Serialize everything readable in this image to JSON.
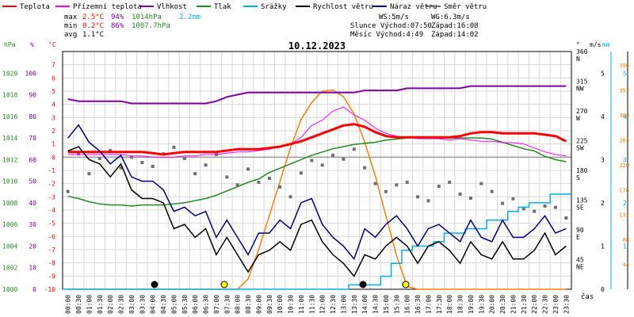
{
  "legend": [
    {
      "label": "Teplota",
      "color": "#ff0000"
    },
    {
      "label": "Přízemní teplota",
      "color": "#ff00ff"
    },
    {
      "label": "Vlhkost",
      "color": "#8000a0"
    },
    {
      "label": "Tlak",
      "color": "#228b22"
    },
    {
      "label": "Srážky",
      "color": "#00b0e8"
    },
    {
      "label": "Rychlost větru",
      "color": "#000000"
    },
    {
      "label": "Náraz větru",
      "color": "#000080"
    },
    {
      "label": "Směr větru",
      "color": "#707070"
    }
  ],
  "stats": {
    "max": {
      "label": "max",
      "temp": "2.5°C",
      "hum": "94%",
      "press": "1014hPa",
      "rain": "2.2mm"
    },
    "min": {
      "label": "min",
      "temp": "0.2°C",
      "hum": "86%",
      "press": "1007.7hPa"
    },
    "avg": {
      "label": "avg",
      "temp": "1.1°C"
    }
  },
  "info": {
    "ws": "WS:5m/s",
    "wg": "WG:6.3m/s",
    "sun": "Slunce Východ:07:50",
    "sun_set": "Západ:16:08",
    "moon": "Měsíc  Východ:4:49",
    "moon_set": "Západ:14:02"
  },
  "date": "10.12.2023",
  "xaxis_label": "čas",
  "colors": {
    "temp": "#ff0000",
    "ground": "#ff00ff",
    "hum": "#8000a0",
    "press": "#228b22",
    "rain": "#00b0e8",
    "wind": "#000000",
    "gust": "#000080",
    "dir": "#707070",
    "sun": "#ff8000",
    "grid": "#d8d8d8"
  },
  "chart_data": {
    "type": "line",
    "title": "10.12.2023",
    "x": [
      "00:00",
      "00:30",
      "01:00",
      "01:30",
      "02:00",
      "02:30",
      "03:00",
      "03:30",
      "04:00",
      "04:30",
      "05:00",
      "05:30",
      "06:00",
      "06:30",
      "07:00",
      "07:30",
      "08:00",
      "08:30",
      "09:00",
      "09:30",
      "10:00",
      "10:30",
      "11:00",
      "11:30",
      "12:00",
      "12:30",
      "13:00",
      "13:30",
      "14:00",
      "14:30",
      "15:00",
      "15:30",
      "16:00",
      "16:30",
      "17:00",
      "17:30",
      "18:00",
      "18:30",
      "19:00",
      "19:30",
      "20:00",
      "20:30",
      "21:00",
      "21:30",
      "22:00",
      "22:30",
      "23:00",
      "23:30"
    ],
    "axes": {
      "hpa": {
        "label": "hPa",
        "ticks": [
          1000,
          1002,
          1004,
          1006,
          1008,
          1010,
          1012,
          1014,
          1016,
          1018,
          1020
        ],
        "range": [
          1000,
          1022
        ]
      },
      "pct": {
        "label": "%",
        "ticks": [
          0,
          10,
          20,
          30,
          40,
          50,
          60,
          70,
          80,
          90,
          100
        ],
        "range": [
          0,
          110
        ]
      },
      "celsius": {
        "label": "°C",
        "ticks": [
          -10,
          -9,
          -8,
          -7,
          -6,
          -5,
          -4,
          -3,
          -2,
          -1,
          0,
          1,
          2,
          3,
          4,
          5,
          6,
          7
        ],
        "range": [
          -10,
          8
        ]
      },
      "direction": {
        "label": "°",
        "ticks": [
          "360 N",
          "315 NW",
          "270 W",
          "225 SW",
          "180 S",
          "135 SE",
          "90 E",
          "45 NE"
        ],
        "range": [
          0,
          360
        ]
      },
      "ms": {
        "label": "m/s",
        "ticks": [
          0,
          1,
          2,
          3,
          4,
          5
        ],
        "range": [
          0,
          5.5
        ]
      },
      "mm": {
        "label": "mm",
        "ticks": [
          1,
          2,
          3,
          4,
          5
        ],
        "range": [
          0,
          5.5
        ]
      },
      "radiation": {
        "ticks": [
          0,
          44,
          88,
          132,
          176,
          220,
          264,
          308,
          352,
          396
        ],
        "range": [
          0,
          420
        ]
      }
    },
    "series": [
      {
        "name": "Teplota",
        "axis": "celsius",
        "values": [
          0.4,
          0.4,
          0.4,
          0.4,
          0.4,
          0.4,
          0.4,
          0.4,
          0.3,
          0.2,
          0.3,
          0.4,
          0.4,
          0.4,
          0.4,
          0.5,
          0.6,
          0.6,
          0.6,
          0.7,
          0.8,
          1.0,
          1.2,
          1.5,
          1.8,
          2.1,
          2.4,
          2.5,
          2.3,
          1.9,
          1.6,
          1.5,
          1.5,
          1.5,
          1.5,
          1.5,
          1.5,
          1.6,
          1.8,
          1.9,
          1.9,
          1.8,
          1.8,
          1.8,
          1.8,
          1.7,
          1.6,
          1.2
        ]
      },
      {
        "name": "Přízemní teplota",
        "axis": "celsius",
        "values": [
          0.2,
          0.2,
          0.2,
          0.2,
          0.2,
          0.2,
          0.1,
          0.1,
          0.0,
          0.0,
          0.0,
          0.1,
          0.1,
          0.2,
          0.2,
          0.3,
          0.4,
          0.4,
          0.5,
          0.6,
          0.8,
          1.0,
          1.5,
          2.4,
          2.8,
          3.5,
          3.8,
          3.2,
          2.8,
          2.2,
          1.8,
          1.6,
          1.5,
          1.4,
          1.4,
          1.4,
          1.3,
          1.4,
          1.3,
          1.2,
          1.2,
          1.1,
          1.1,
          1.0,
          0.7,
          0.4,
          0.2,
          0.1
        ]
      },
      {
        "name": "Vlhkost",
        "axis": "pct",
        "values": [
          88,
          87,
          87,
          87,
          87,
          87,
          86,
          86,
          86,
          86,
          86,
          86,
          86,
          86,
          87,
          89,
          90,
          91,
          91,
          91,
          91,
          91,
          91,
          91,
          91,
          91,
          91,
          91,
          92,
          92,
          92,
          92,
          93,
          93,
          93,
          93,
          93,
          93,
          94,
          94,
          94,
          94,
          94,
          94,
          94,
          94,
          94,
          94
        ]
      },
      {
        "name": "Tlak",
        "axis": "hpa",
        "values": [
          1008.6,
          1008.4,
          1008.1,
          1007.9,
          1007.8,
          1007.8,
          1007.7,
          1007.8,
          1007.8,
          1007.8,
          1007.9,
          1008.0,
          1008.2,
          1008.4,
          1008.7,
          1009.1,
          1009.5,
          1009.9,
          1010.2,
          1010.8,
          1011.2,
          1011.6,
          1012.0,
          1012.4,
          1012.7,
          1013.0,
          1013.2,
          1013.4,
          1013.5,
          1013.6,
          1013.8,
          1013.9,
          1014.0,
          1014.0,
          1014.0,
          1014.0,
          1014.0,
          1014.0,
          1014.0,
          1014.0,
          1013.9,
          1013.6,
          1013.3,
          1013.0,
          1012.8,
          1012.3,
          1012.0,
          1011.8
        ]
      },
      {
        "name": "Srážky",
        "axis": "mm",
        "values": [
          0,
          0,
          0,
          0,
          0,
          0,
          0,
          0,
          0,
          0,
          0,
          0,
          0,
          0,
          0,
          0,
          0,
          0,
          0,
          0,
          0,
          0,
          0,
          0,
          0,
          0,
          0,
          0.1,
          0.1,
          0.1,
          0.3,
          0.6,
          0.9,
          1.0,
          1.0,
          1.1,
          1.3,
          1.3,
          1.4,
          1.4,
          1.6,
          1.6,
          1.8,
          1.9,
          2.0,
          2.0,
          2.2,
          2.2
        ]
      },
      {
        "name": "Rychlost větru",
        "axis": "ms",
        "values": [
          3.2,
          3.3,
          3.0,
          2.9,
          2.6,
          2.9,
          2.3,
          2.1,
          2.1,
          2.0,
          1.4,
          1.5,
          1.2,
          1.4,
          0.8,
          1.2,
          0.8,
          0.4,
          0.8,
          0.9,
          1.1,
          0.9,
          1.5,
          1.6,
          1.1,
          0.8,
          0.6,
          0.3,
          0.8,
          0.7,
          1.0,
          1.2,
          1.0,
          0.6,
          1.0,
          1.1,
          0.9,
          0.6,
          1.1,
          0.8,
          0.7,
          1.1,
          0.7,
          0.7,
          0.9,
          1.3,
          0.8,
          1.0
        ]
      },
      {
        "name": "Náraz větru",
        "axis": "ms",
        "values": [
          3.5,
          3.8,
          3.4,
          3.2,
          2.9,
          3.1,
          2.6,
          2.5,
          2.5,
          2.3,
          1.8,
          1.9,
          1.7,
          1.8,
          1.2,
          1.6,
          1.2,
          0.8,
          1.3,
          1.3,
          1.6,
          1.4,
          2.0,
          2.1,
          1.5,
          1.2,
          1.0,
          0.7,
          1.4,
          1.2,
          1.5,
          1.7,
          1.4,
          1.0,
          1.4,
          1.5,
          1.3,
          1.1,
          1.6,
          1.2,
          1.1,
          1.6,
          1.2,
          1.2,
          1.4,
          1.7,
          1.3,
          1.4
        ]
      },
      {
        "name": "Směr větru",
        "axis": "direction",
        "values": [
          148,
          205,
          175,
          198,
          210,
          184,
          200,
          192,
          186,
          205,
          215,
          198,
          175,
          188,
          204,
          170,
          158,
          182,
          162,
          168,
          155,
          140,
          176,
          195,
          188,
          203,
          197,
          212,
          184,
          160,
          148,
          158,
          162,
          140,
          134,
          156,
          162,
          144,
          138,
          160,
          148,
          130,
          137,
          122,
          118,
          126,
          124,
          108
        ]
      },
      {
        "name": "Solar",
        "axis": "radiation",
        "values": [
          0,
          0,
          0,
          0,
          0,
          0,
          0,
          0,
          0,
          0,
          0,
          0,
          0,
          0,
          0,
          0,
          0,
          18,
          70,
          130,
          190,
          250,
          300,
          330,
          350,
          352,
          340,
          310,
          260,
          200,
          130,
          60,
          5,
          0,
          0,
          0,
          0,
          0,
          0,
          0,
          0,
          0,
          0,
          0,
          0,
          0,
          0,
          0
        ]
      }
    ]
  }
}
